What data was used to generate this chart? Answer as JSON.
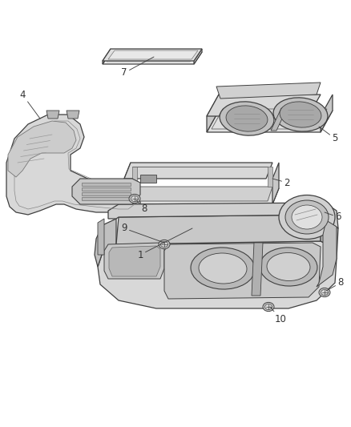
{
  "background_color": "#ffffff",
  "line_color": "#404040",
  "label_color": "#333333",
  "fig_width": 4.38,
  "fig_height": 5.33,
  "dpi": 100
}
